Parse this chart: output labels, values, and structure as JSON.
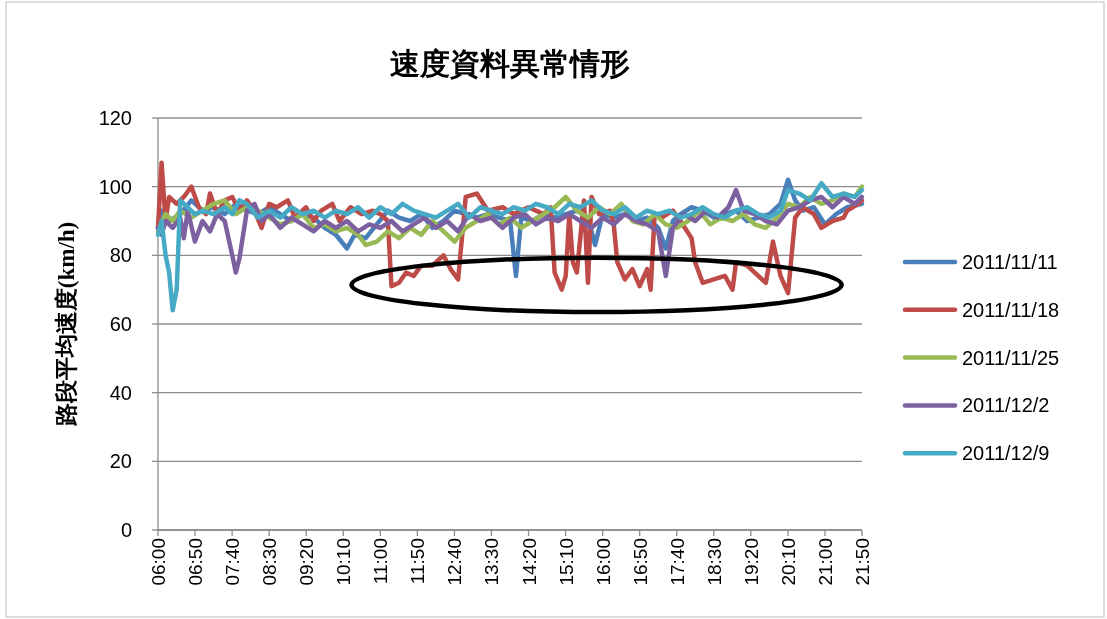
{
  "chart_data": {
    "type": "line",
    "title": "速度資料異常情形",
    "ylabel": "路段平均速度(km/h)",
    "xlim": [
      6,
      21.833
    ],
    "ylim": [
      0,
      120
    ],
    "yticks": [
      0,
      20,
      40,
      60,
      80,
      100,
      120
    ],
    "grid": "y",
    "legend": "right",
    "xticks": [
      {
        "value": 6,
        "label": "06:00"
      },
      {
        "value": 6.833,
        "label": "06:50"
      },
      {
        "value": 7.667,
        "label": "07:40"
      },
      {
        "value": 8.5,
        "label": "08:30"
      },
      {
        "value": 9.333,
        "label": "09:20"
      },
      {
        "value": 10.167,
        "label": "10:10"
      },
      {
        "value": 11,
        "label": "11:00"
      },
      {
        "value": 11.833,
        "label": "11:50"
      },
      {
        "value": 12.667,
        "label": "12:40"
      },
      {
        "value": 13.5,
        "label": "13:30"
      },
      {
        "value": 14.333,
        "label": "14:20"
      },
      {
        "value": 15.167,
        "label": "15:10"
      },
      {
        "value": 16,
        "label": "16:00"
      },
      {
        "value": 16.833,
        "label": "16:50"
      },
      {
        "value": 17.667,
        "label": "17:40"
      },
      {
        "value": 18.5,
        "label": "18:30"
      },
      {
        "value": 19.333,
        "label": "19:20"
      },
      {
        "value": 20.167,
        "label": "20:10"
      },
      {
        "value": 21,
        "label": "21:00"
      },
      {
        "value": 21.833,
        "label": "21:50"
      }
    ],
    "series": [
      {
        "name": "2011/11/11",
        "color": "#4a7ebb",
        "x": [
          6.0,
          6.08,
          6.25,
          6.5,
          6.75,
          7.0,
          7.25,
          7.5,
          7.75,
          8.0,
          8.25,
          8.5,
          8.75,
          9.0,
          9.25,
          9.5,
          9.75,
          10.0,
          10.25,
          10.42,
          10.67,
          10.92,
          11.17,
          11.42,
          11.67,
          11.92,
          12.17,
          12.42,
          12.67,
          12.92,
          13.17,
          13.42,
          13.67,
          13.92,
          14.05,
          14.17,
          14.42,
          14.67,
          14.92,
          15.17,
          15.42,
          15.67,
          15.83,
          16.0,
          16.25,
          16.5,
          16.75,
          17.0,
          17.25,
          17.42,
          17.58,
          17.75,
          18.0,
          18.25,
          18.5,
          18.75,
          19.0,
          19.25,
          19.5,
          19.75,
          20.0,
          20.17,
          20.33,
          20.5,
          20.75,
          21.0,
          21.25,
          21.5,
          21.83
        ],
        "values": [
          88,
          93,
          90,
          92,
          96,
          93,
          94,
          92,
          95,
          93,
          92,
          94,
          92,
          90,
          92,
          91,
          88,
          86,
          82,
          86,
          85,
          89,
          93,
          91,
          90,
          92,
          88,
          90,
          93,
          92,
          91,
          92,
          91,
          90,
          74,
          91,
          90,
          92,
          91,
          92,
          93,
          91,
          83,
          92,
          91,
          92,
          90,
          91,
          88,
          82,
          90,
          92,
          94,
          93,
          91,
          92,
          93,
          90,
          91,
          92,
          95,
          102,
          96,
          93,
          94,
          89,
          92,
          94,
          95
        ]
      },
      {
        "name": "2011/11/18",
        "color": "#be4b48",
        "x": [
          6.0,
          6.08,
          6.17,
          6.25,
          6.42,
          6.58,
          6.75,
          6.92,
          7.08,
          7.17,
          7.33,
          7.5,
          7.67,
          7.83,
          8.0,
          8.17,
          8.33,
          8.5,
          8.67,
          8.92,
          9.08,
          9.33,
          9.5,
          9.67,
          9.92,
          10.08,
          10.33,
          10.58,
          10.83,
          11.0,
          11.17,
          11.25,
          11.42,
          11.58,
          11.75,
          11.92,
          12.17,
          12.42,
          12.58,
          12.75,
          12.92,
          13.17,
          13.42,
          13.75,
          14.0,
          14.33,
          14.67,
          14.83,
          14.92,
          15.08,
          15.17,
          15.25,
          15.33,
          15.42,
          15.58,
          15.67,
          15.75,
          15.92,
          16.17,
          16.25,
          16.33,
          16.5,
          16.67,
          16.83,
          17.0,
          17.08,
          17.17,
          17.33,
          17.58,
          17.75,
          18.0,
          18.08,
          18.25,
          18.5,
          18.75,
          18.92,
          19.0,
          19.25,
          19.5,
          19.67,
          19.83,
          20.0,
          20.17,
          20.33,
          20.5,
          20.75,
          20.92,
          21.17,
          21.42,
          21.5,
          21.75,
          21.83
        ],
        "values": [
          88,
          107,
          90,
          97,
          95,
          97,
          100,
          94,
          92,
          98,
          92,
          96,
          97,
          93,
          96,
          93,
          88,
          95,
          94,
          96,
          91,
          94,
          90,
          93,
          95,
          90,
          94,
          92,
          93,
          92,
          90,
          71,
          72,
          75,
          74,
          77,
          77,
          80,
          76,
          73,
          97,
          98,
          93,
          94,
          92,
          94,
          92,
          94,
          75,
          70,
          74,
          92,
          78,
          75,
          96,
          72,
          97,
          92,
          93,
          89,
          78,
          73,
          76,
          71,
          76,
          70,
          92,
          91,
          93,
          90,
          85,
          78,
          72,
          73,
          74,
          70,
          78,
          77,
          74,
          72,
          84,
          74,
          69,
          91,
          94,
          92,
          88,
          90,
          91,
          93,
          95,
          96
        ]
      },
      {
        "name": "2011/11/25",
        "color": "#98b954",
        "x": [
          6.0,
          6.17,
          6.33,
          6.5,
          6.75,
          7.0,
          7.25,
          7.5,
          7.75,
          8.0,
          8.25,
          8.5,
          8.75,
          9.0,
          9.25,
          9.5,
          9.75,
          10.0,
          10.25,
          10.5,
          10.67,
          10.92,
          11.17,
          11.42,
          11.67,
          11.92,
          12.17,
          12.42,
          12.67,
          12.92,
          13.17,
          13.42,
          13.67,
          13.92,
          14.17,
          14.42,
          14.67,
          14.92,
          15.17,
          15.42,
          15.67,
          15.92,
          16.17,
          16.42,
          16.67,
          16.92,
          17.17,
          17.42,
          17.67,
          17.92,
          18.17,
          18.42,
          18.67,
          18.92,
          19.17,
          19.42,
          19.67,
          19.92,
          20.17,
          20.42,
          20.67,
          20.92,
          21.17,
          21.42,
          21.67,
          21.83
        ],
        "values": [
          87,
          92,
          90,
          93,
          91,
          93,
          95,
          96,
          92,
          94,
          93,
          91,
          89,
          90,
          92,
          88,
          89,
          87,
          88,
          86,
          83,
          84,
          87,
          85,
          88,
          86,
          90,
          87,
          84,
          88,
          90,
          92,
          89,
          91,
          88,
          90,
          92,
          94,
          97,
          93,
          91,
          94,
          92,
          95,
          90,
          89,
          92,
          89,
          88,
          90,
          93,
          89,
          91,
          90,
          92,
          89,
          88,
          91,
          95,
          94,
          97,
          95,
          96,
          98,
          97,
          100
        ]
      },
      {
        "name": "2011/12/2",
        "color": "#7d60a0",
        "x": [
          6.0,
          6.08,
          6.17,
          6.33,
          6.5,
          6.58,
          6.67,
          6.83,
          7.0,
          7.17,
          7.33,
          7.5,
          7.67,
          7.75,
          7.83,
          8.0,
          8.17,
          8.33,
          8.5,
          8.75,
          9.0,
          9.25,
          9.5,
          9.75,
          10.0,
          10.25,
          10.5,
          10.75,
          11.0,
          11.25,
          11.5,
          11.75,
          12.0,
          12.25,
          12.5,
          12.75,
          13.0,
          13.25,
          13.5,
          13.75,
          14.0,
          14.25,
          14.5,
          14.75,
          15.0,
          15.25,
          15.5,
          15.75,
          16.0,
          16.25,
          16.5,
          16.75,
          17.0,
          17.25,
          17.42,
          17.58,
          17.83,
          18.08,
          18.33,
          18.58,
          18.83,
          19.0,
          19.17,
          19.42,
          19.67,
          19.92,
          20.17,
          20.42,
          20.67,
          20.92,
          21.17,
          21.42,
          21.67,
          21.83
        ],
        "values": [
          88,
          86,
          90,
          88,
          91,
          85,
          93,
          84,
          90,
          87,
          92,
          90,
          80,
          75,
          79,
          93,
          95,
          90,
          92,
          88,
          91,
          89,
          87,
          90,
          88,
          90,
          87,
          89,
          88,
          90,
          87,
          89,
          91,
          88,
          90,
          87,
          92,
          90,
          91,
          88,
          91,
          92,
          89,
          91,
          90,
          92,
          90,
          88,
          91,
          89,
          92,
          90,
          89,
          87,
          74,
          88,
          92,
          90,
          93,
          91,
          94,
          99,
          93,
          92,
          90,
          89,
          93,
          94,
          96,
          97,
          94,
          97,
          95,
          97
        ]
      },
      {
        "name": "2011/12/9",
        "color": "#46aac5",
        "x": [
          6.0,
          6.08,
          6.17,
          6.25,
          6.33,
          6.42,
          6.5,
          6.67,
          6.83,
          7.0,
          7.25,
          7.5,
          7.67,
          7.83,
          8.0,
          8.25,
          8.5,
          8.75,
          9.0,
          9.25,
          9.5,
          9.75,
          10.0,
          10.25,
          10.5,
          10.75,
          11.0,
          11.25,
          11.5,
          11.75,
          12.0,
          12.25,
          12.5,
          12.75,
          13.0,
          13.25,
          13.5,
          13.75,
          14.0,
          14.25,
          14.5,
          14.75,
          15.0,
          15.25,
          15.5,
          15.75,
          16.0,
          16.25,
          16.5,
          16.75,
          17.0,
          17.25,
          17.5,
          17.75,
          18.0,
          18.25,
          18.5,
          18.75,
          19.0,
          19.25,
          19.5,
          19.75,
          20.0,
          20.17,
          20.42,
          20.67,
          20.92,
          21.17,
          21.42,
          21.67,
          21.83
        ],
        "values": [
          86,
          90,
          80,
          75,
          64,
          70,
          96,
          94,
          92,
          93,
          92,
          94,
          92,
          96,
          95,
          91,
          93,
          91,
          94,
          92,
          93,
          91,
          93,
          92,
          94,
          91,
          94,
          92,
          95,
          93,
          92,
          91,
          93,
          95,
          91,
          94,
          93,
          92,
          94,
          93,
          95,
          94,
          92,
          95,
          94,
          96,
          93,
          92,
          94,
          91,
          93,
          92,
          93,
          91,
          92,
          94,
          92,
          91,
          93,
          94,
          92,
          91,
          93,
          99,
          98,
          96,
          101,
          97,
          98,
          97,
          99
        ]
      }
    ]
  }
}
